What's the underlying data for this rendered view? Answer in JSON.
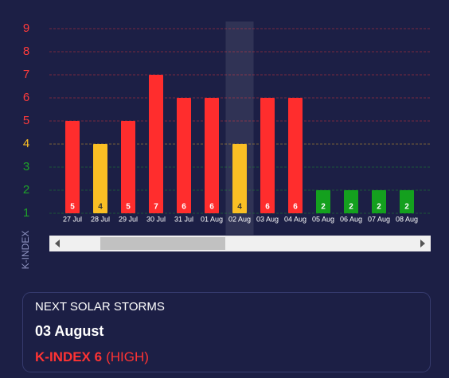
{
  "chart_data": {
    "type": "bar",
    "y_label": "K-INDEX",
    "categories": [
      "27 Jul",
      "28 Jul",
      "29 Jul",
      "30 Jul",
      "31 Jul",
      "01 Aug",
      "02 Aug",
      "03 Aug",
      "04 Aug",
      "05 Aug",
      "06 Aug",
      "07 Aug",
      "08 Aug"
    ],
    "values": [
      5,
      4,
      5,
      7,
      6,
      6,
      4,
      6,
      6,
      2,
      2,
      2,
      2
    ],
    "colors": [
      "#ff2d2d",
      "#fbbf24",
      "#ff2d2d",
      "#ff2d2d",
      "#ff2d2d",
      "#ff2d2d",
      "#fbbf24",
      "#ff2d2d",
      "#ff2d2d",
      "#14a01e",
      "#14a01e",
      "#14a01e",
      "#14a01e"
    ],
    "ylim": [
      1,
      9
    ],
    "yticks": [
      1,
      2,
      3,
      4,
      5,
      6,
      7,
      8,
      9
    ],
    "ytick_colors": [
      "#1fa12a",
      "#1fa12a",
      "#1fa12a",
      "#fbbf24",
      "#ff3b3b",
      "#ff3b3b",
      "#ff3b3b",
      "#ff3b3b",
      "#ff3b3b"
    ],
    "grid": true,
    "highlight_category": 6
  },
  "storm": {
    "heading": "NEXT SOLAR STORMS",
    "date": "03 August",
    "kindex": "K-INDEX 6",
    "level": "(HIGH)"
  }
}
